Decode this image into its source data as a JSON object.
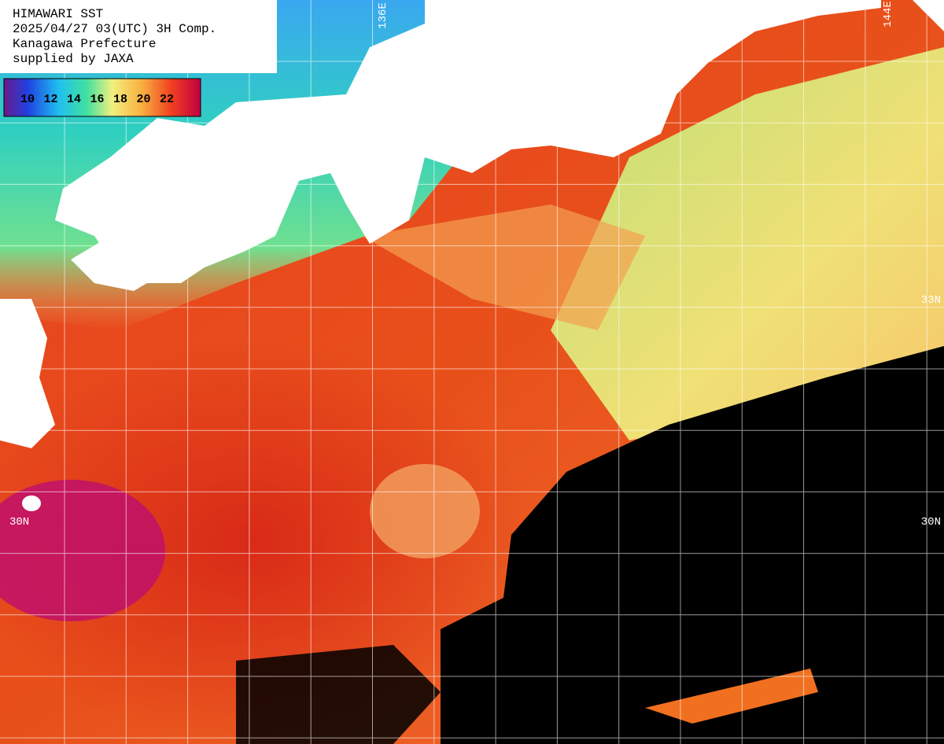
{
  "header": {
    "lines": [
      "HIMAWARI SST",
      "2025/04/27 03(UTC) 3H Comp.",
      "Kanagawa Prefecture",
      "supplied by JAXA"
    ]
  },
  "legend": {
    "labels": [
      10,
      12,
      14,
      16,
      18,
      20,
      22
    ]
  },
  "grid_labels": {
    "lon": [
      "136E",
      "144E"
    ],
    "lat_left": [
      "30N"
    ],
    "lat_right": [
      "33N",
      "30N"
    ]
  }
}
